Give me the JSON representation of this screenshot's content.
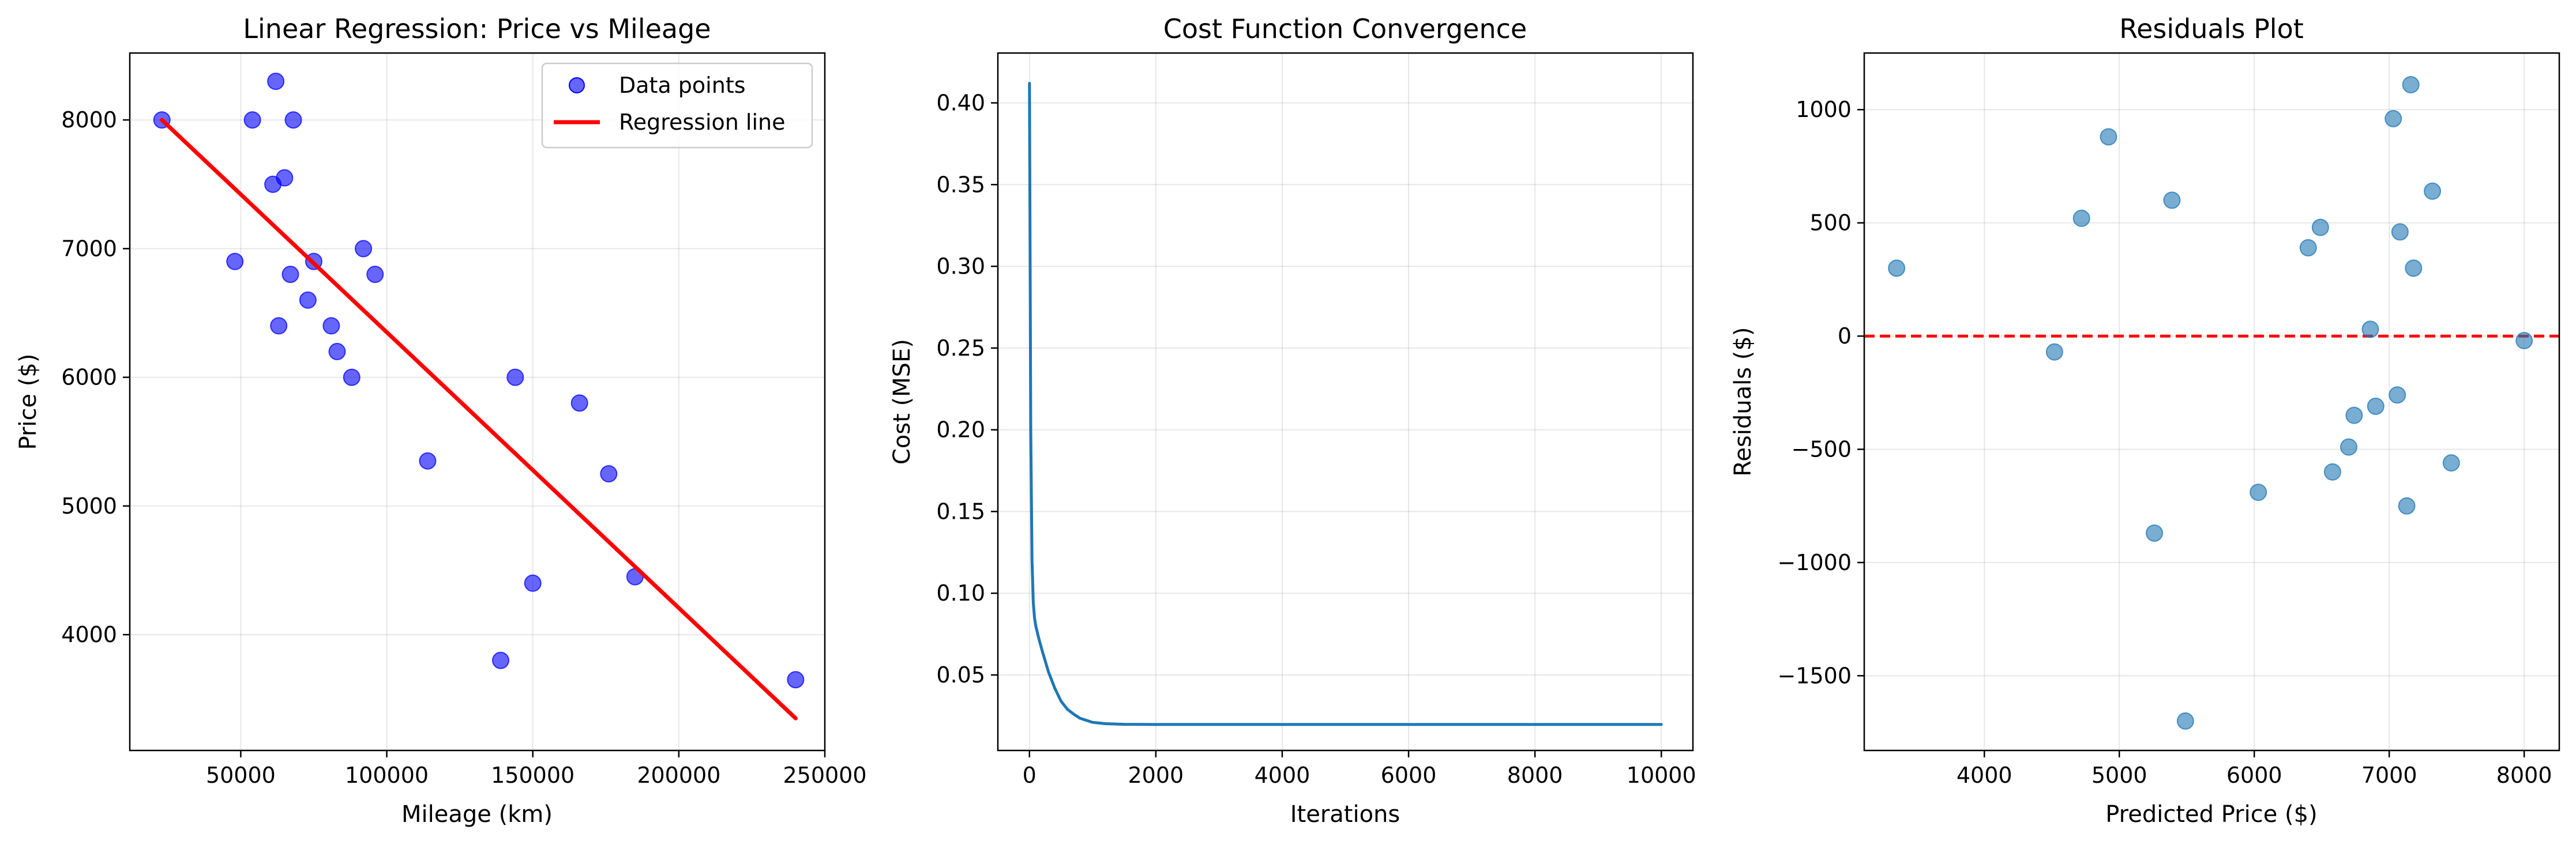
{
  "chart_data": [
    {
      "type": "scatter",
      "title": "Linear Regression: Price vs Mileage",
      "xlabel": "Mileage (km)",
      "ylabel": "Price ($)",
      "xlim": [
        12000,
        250000
      ],
      "ylim": [
        3100,
        8520
      ],
      "xticks": [
        50000,
        100000,
        150000,
        200000,
        250000
      ],
      "yticks": [
        4000,
        5000,
        6000,
        7000,
        8000
      ],
      "grid": true,
      "legend_position": "upper right",
      "series": [
        {
          "name": "Data points",
          "kind": "scatter",
          "color": "#0000ff",
          "points": [
            {
              "x": 23000,
              "y": 8000
            },
            {
              "x": 48000,
              "y": 6900
            },
            {
              "x": 54000,
              "y": 8000
            },
            {
              "x": 61000,
              "y": 7500
            },
            {
              "x": 62000,
              "y": 8300
            },
            {
              "x": 63000,
              "y": 6400
            },
            {
              "x": 65000,
              "y": 7550
            },
            {
              "x": 67000,
              "y": 6800
            },
            {
              "x": 68000,
              "y": 8000
            },
            {
              "x": 73000,
              "y": 6600
            },
            {
              "x": 75000,
              "y": 6900
            },
            {
              "x": 81000,
              "y": 6400
            },
            {
              "x": 83000,
              "y": 6200
            },
            {
              "x": 88000,
              "y": 6000
            },
            {
              "x": 92000,
              "y": 7000
            },
            {
              "x": 96000,
              "y": 6800
            },
            {
              "x": 114000,
              "y": 5350
            },
            {
              "x": 139000,
              "y": 3800
            },
            {
              "x": 144000,
              "y": 6000
            },
            {
              "x": 150000,
              "y": 4400
            },
            {
              "x": 166000,
              "y": 5800
            },
            {
              "x": 176000,
              "y": 5250
            },
            {
              "x": 185000,
              "y": 4450
            },
            {
              "x": 240000,
              "y": 3650
            }
          ]
        },
        {
          "name": "Regression line",
          "kind": "line",
          "color": "#ff0000",
          "points": [
            {
              "x": 23000,
              "y": 8000
            },
            {
              "x": 240000,
              "y": 3350
            }
          ]
        }
      ]
    },
    {
      "type": "line",
      "title": "Cost Function Convergence",
      "xlabel": "Iterations",
      "ylabel": "Cost (MSE)",
      "xlim": [
        -500,
        10500
      ],
      "ylim": [
        0.0038,
        0.4305
      ],
      "xticks": [
        0,
        2000,
        4000,
        6000,
        8000,
        10000
      ],
      "yticks": [
        0.05,
        0.1,
        0.15,
        0.2,
        0.25,
        0.3,
        0.35,
        0.4
      ],
      "grid": true,
      "series": [
        {
          "color": "#1f77b4",
          "points": [
            {
              "x": 0,
              "y": 0.412
            },
            {
              "x": 20,
              "y": 0.2
            },
            {
              "x": 40,
              "y": 0.12
            },
            {
              "x": 60,
              "y": 0.095
            },
            {
              "x": 80,
              "y": 0.085
            },
            {
              "x": 100,
              "y": 0.08
            },
            {
              "x": 150,
              "y": 0.072
            },
            {
              "x": 200,
              "y": 0.065
            },
            {
              "x": 300,
              "y": 0.052
            },
            {
              "x": 400,
              "y": 0.042
            },
            {
              "x": 500,
              "y": 0.034
            },
            {
              "x": 600,
              "y": 0.029
            },
            {
              "x": 700,
              "y": 0.026
            },
            {
              "x": 800,
              "y": 0.0235
            },
            {
              "x": 1000,
              "y": 0.021
            },
            {
              "x": 1200,
              "y": 0.0202
            },
            {
              "x": 1500,
              "y": 0.0198
            },
            {
              "x": 2000,
              "y": 0.0197
            },
            {
              "x": 4000,
              "y": 0.0197
            },
            {
              "x": 6000,
              "y": 0.0197
            },
            {
              "x": 8000,
              "y": 0.0197
            },
            {
              "x": 10000,
              "y": 0.0197
            }
          ]
        }
      ]
    },
    {
      "type": "scatter",
      "title": "Residuals Plot",
      "xlabel": "Predicted Price ($)",
      "ylabel": "Residuals ($)",
      "xlim": [
        3110,
        8260
      ],
      "ylim": [
        -1830,
        1250
      ],
      "xticks": [
        4000,
        5000,
        6000,
        7000,
        8000
      ],
      "yticks": [
        -1500,
        -1000,
        -500,
        0,
        500,
        1000
      ],
      "grid": true,
      "zero_line_color": "#ff0000",
      "series": [
        {
          "color": "#1f77b4",
          "points": [
            {
              "x": 3350,
              "y": 300
            },
            {
              "x": 4520,
              "y": -70
            },
            {
              "x": 4720,
              "y": 520
            },
            {
              "x": 4920,
              "y": 880
            },
            {
              "x": 5260,
              "y": -870
            },
            {
              "x": 5390,
              "y": 600
            },
            {
              "x": 5490,
              "y": -1700
            },
            {
              "x": 6030,
              "y": -690
            },
            {
              "x": 6400,
              "y": 390
            },
            {
              "x": 6490,
              "y": 480
            },
            {
              "x": 6580,
              "y": -600
            },
            {
              "x": 6700,
              "y": -490
            },
            {
              "x": 6740,
              "y": -350
            },
            {
              "x": 6860,
              "y": 30
            },
            {
              "x": 6900,
              "y": -310
            },
            {
              "x": 7030,
              "y": 960
            },
            {
              "x": 7060,
              "y": -260
            },
            {
              "x": 7080,
              "y": 460
            },
            {
              "x": 7130,
              "y": -750
            },
            {
              "x": 7160,
              "y": 1110
            },
            {
              "x": 7180,
              "y": 300
            },
            {
              "x": 7320,
              "y": 640
            },
            {
              "x": 7460,
              "y": -560
            },
            {
              "x": 8000,
              "y": -20
            }
          ]
        }
      ]
    }
  ]
}
